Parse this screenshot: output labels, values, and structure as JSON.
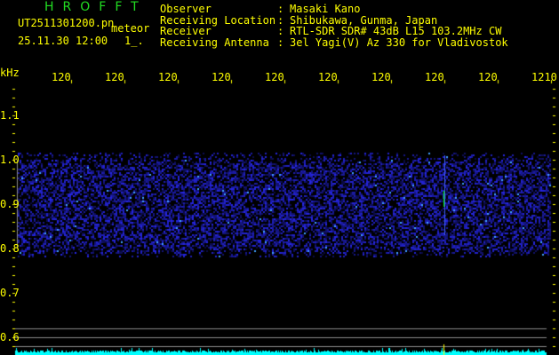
{
  "header": {
    "title": "HROFFT",
    "filename": "UT2511301200.pn",
    "mode": "meteor",
    "datetime": "25.11.30 12:00",
    "extra": "1_.",
    "info": [
      {
        "label": "Observer",
        "value": "Masaki Kano"
      },
      {
        "label": "Receiving Location",
        "value": "Shibukawa, Gunma, Japan"
      },
      {
        "label": "Receiver",
        "value": "RTL-SDR SDR# 43dB L15 103.2MHz CW"
      },
      {
        "label": "Receiving Antenna",
        "value": "3el Yagi(V) Az 330 for Vladivostok"
      }
    ]
  },
  "plot": {
    "y_unit": "kHz",
    "y_ticks": [
      "1.1",
      "1.0",
      "0.9",
      "0.8",
      "0.7",
      "0.6"
    ],
    "x_ticks": [
      "1201",
      "1202",
      "1203",
      "1204",
      "1205",
      "1206",
      "1207",
      "1208",
      "1209",
      "1210"
    ],
    "colors": {
      "text": "#ffff00",
      "noise": "#2222ff",
      "spectrum": "#00ffff",
      "echo": "#00ff00",
      "gridline": "#888888"
    }
  }
}
